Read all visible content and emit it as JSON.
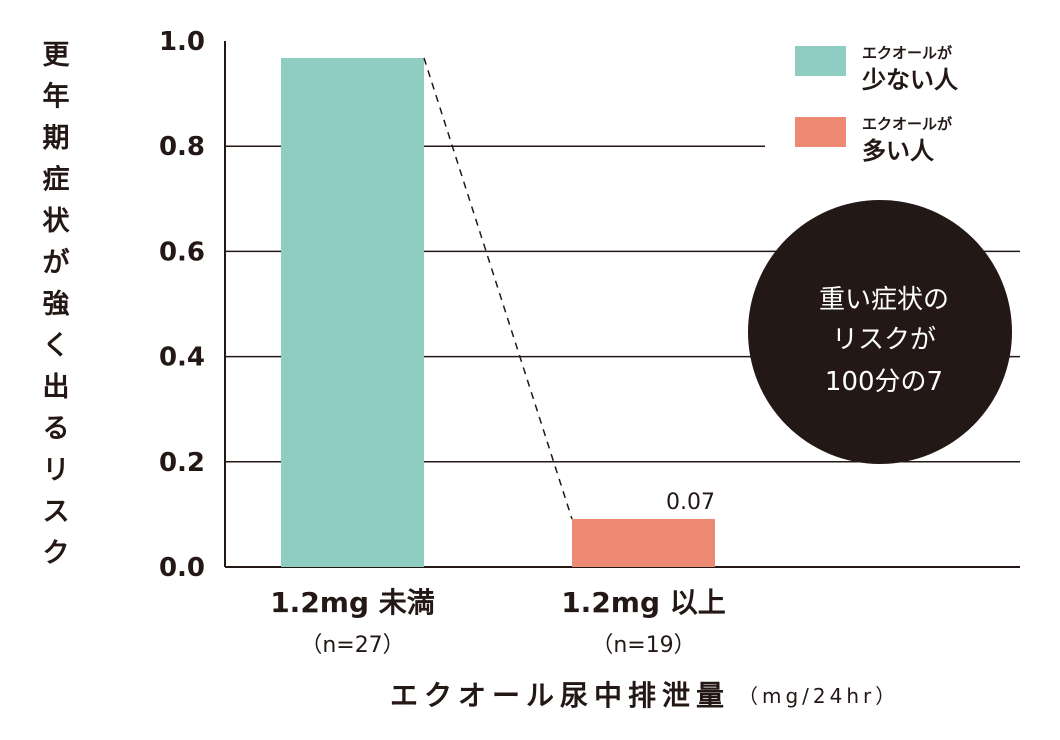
{
  "chart_data": {
    "type": "bar",
    "ylabel": "更年期症状が強く出るリスク",
    "xlabel": "エクオール尿中排泄量",
    "xunit": "（mg/24hr）",
    "ylim": [
      0,
      1.0
    ],
    "yticks": [
      "0.0",
      "0.2",
      "0.4",
      "0.6",
      "0.8",
      "1.0"
    ],
    "grid": true,
    "legend_position": "top-right",
    "categories": [
      {
        "label": "1.2mg 未満",
        "n": "（n=27）"
      },
      {
        "label": "1.2mg 以上",
        "n": "（n=19）"
      }
    ],
    "values": [
      1.0,
      0.07
    ],
    "data_labels": [
      "",
      "0.07"
    ],
    "colors": [
      "#8fcdc3",
      "#ee8a74"
    ],
    "legend": [
      {
        "small": "エクオールが",
        "large": "少ない人",
        "color": "#8fcdc3"
      },
      {
        "small": "エクオールが",
        "large": "多い人",
        "color": "#ee8a74"
      }
    ],
    "annotation": [
      "重い症状の",
      "リスクが",
      "100分の7"
    ],
    "annotation_color": "#231815"
  }
}
